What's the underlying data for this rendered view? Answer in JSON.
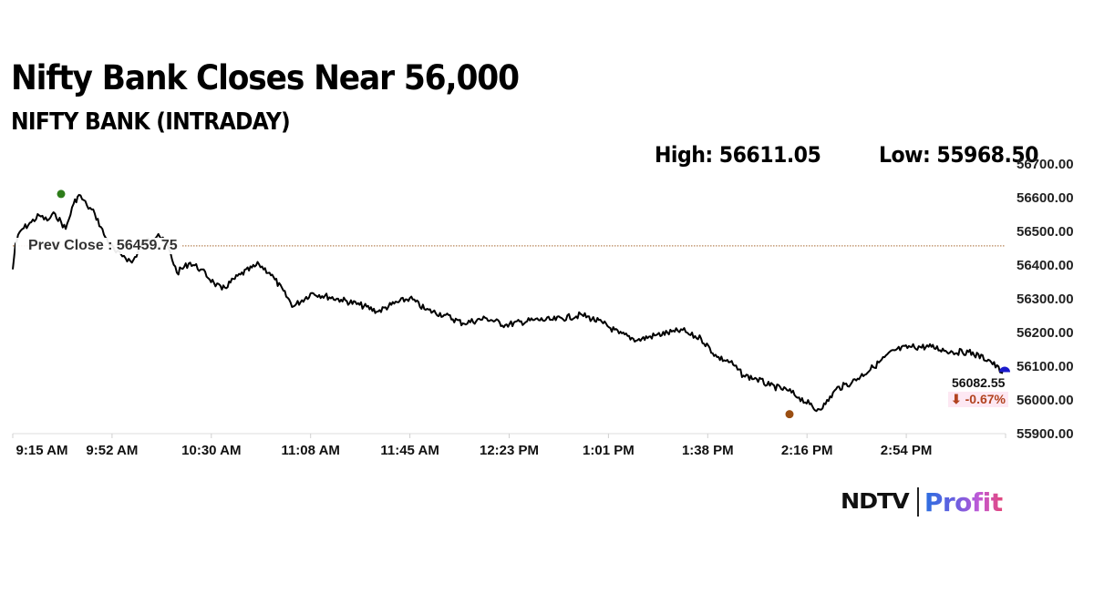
{
  "header": {
    "headline": "Nifty Bank Closes Near 56,000",
    "subhead": "NIFTY BANK (INTRADAY)",
    "high_label": "High: 56611.05",
    "low_label": "Low: 55968.50"
  },
  "prev_close": {
    "label": "Prev Close : 56459.75",
    "value": 56459.75,
    "line_color": "#b8865a"
  },
  "last": {
    "value_label": "56082.55",
    "change_label": "⬇ -0.67%",
    "change_color": "#b2431f",
    "marker_color": "#1a1acc"
  },
  "markers": {
    "high_color": "#2e7d1a",
    "low_color": "#9a4e12"
  },
  "brand": {
    "ndtv": "NDTV",
    "profit": "Profit"
  },
  "chart_data": {
    "type": "line",
    "title": "NIFTY BANK (INTRADAY)",
    "subtitle": "Nifty Bank Closes Near 56,000",
    "xlabel": "",
    "ylabel": "",
    "x_ticks": [
      "9:15 AM",
      "9:52 AM",
      "10:30 AM",
      "11:08 AM",
      "11:45 AM",
      "12:23 PM",
      "1:01 PM",
      "1:38 PM",
      "2:16 PM",
      "2:54 PM"
    ],
    "y_ticks": [
      "56700.00",
      "56600.00",
      "56500.00",
      "56400.00",
      "56300.00",
      "56200.00",
      "56100.00",
      "56000.00",
      "55900.00"
    ],
    "ylim": [
      55900,
      56700
    ],
    "grid": false,
    "legend": null,
    "annotations": {
      "prev_close": 56459.75,
      "high": 56611.05,
      "low": 55968.5,
      "last": 56082.55,
      "change_pct": -0.67
    },
    "series": [
      {
        "name": "NIFTY BANK",
        "x": [
          "9:15",
          "9:16",
          "9:18",
          "9:22",
          "9:25",
          "9:28",
          "9:31",
          "9:35",
          "9:38",
          "9:40",
          "9:43",
          "9:46",
          "9:50",
          "9:54",
          "9:57",
          "10:00",
          "10:04",
          "10:10",
          "10:14",
          "10:17",
          "10:22",
          "10:26",
          "10:31",
          "10:34",
          "10:41",
          "10:48",
          "10:52",
          "10:54",
          "11:01",
          "11:08",
          "11:19",
          "11:26",
          "11:33",
          "11:38",
          "11:45",
          "11:51",
          "11:58",
          "12:05",
          "12:14",
          "12:21",
          "12:32",
          "12:39",
          "12:50",
          "12:58",
          "13:04",
          "13:11",
          "13:18",
          "13:25",
          "13:28",
          "13:31",
          "13:35",
          "13:41",
          "13:46",
          "13:51",
          "13:56",
          "14:01",
          "14:08",
          "14:12",
          "14:16",
          "14:18",
          "14:22",
          "14:26",
          "14:32",
          "14:40",
          "14:48",
          "14:54",
          "15:02",
          "15:10",
          "15:16",
          "15:24",
          "15:29"
        ],
        "values": [
          56390,
          56465,
          56505,
          56530,
          56550,
          56535,
          56555,
          56510,
          56585,
          56611,
          56580,
          56555,
          56485,
          56440,
          56430,
          56410,
          56465,
          56495,
          56450,
          56380,
          56410,
          56390,
          56350,
          56330,
          56375,
          56405,
          56380,
          56360,
          56280,
          56320,
          56300,
          56285,
          56265,
          56285,
          56305,
          56270,
          56255,
          56230,
          56245,
          56225,
          56240,
          56240,
          56255,
          56230,
          56200,
          56180,
          56195,
          56205,
          56210,
          56195,
          56185,
          56130,
          56115,
          56075,
          56065,
          56045,
          56030,
          56010,
          55990,
          55972,
          55990,
          56035,
          56055,
          56100,
          56150,
          56160,
          56160,
          56145,
          56145,
          56120,
          56082.55
        ]
      }
    ]
  }
}
